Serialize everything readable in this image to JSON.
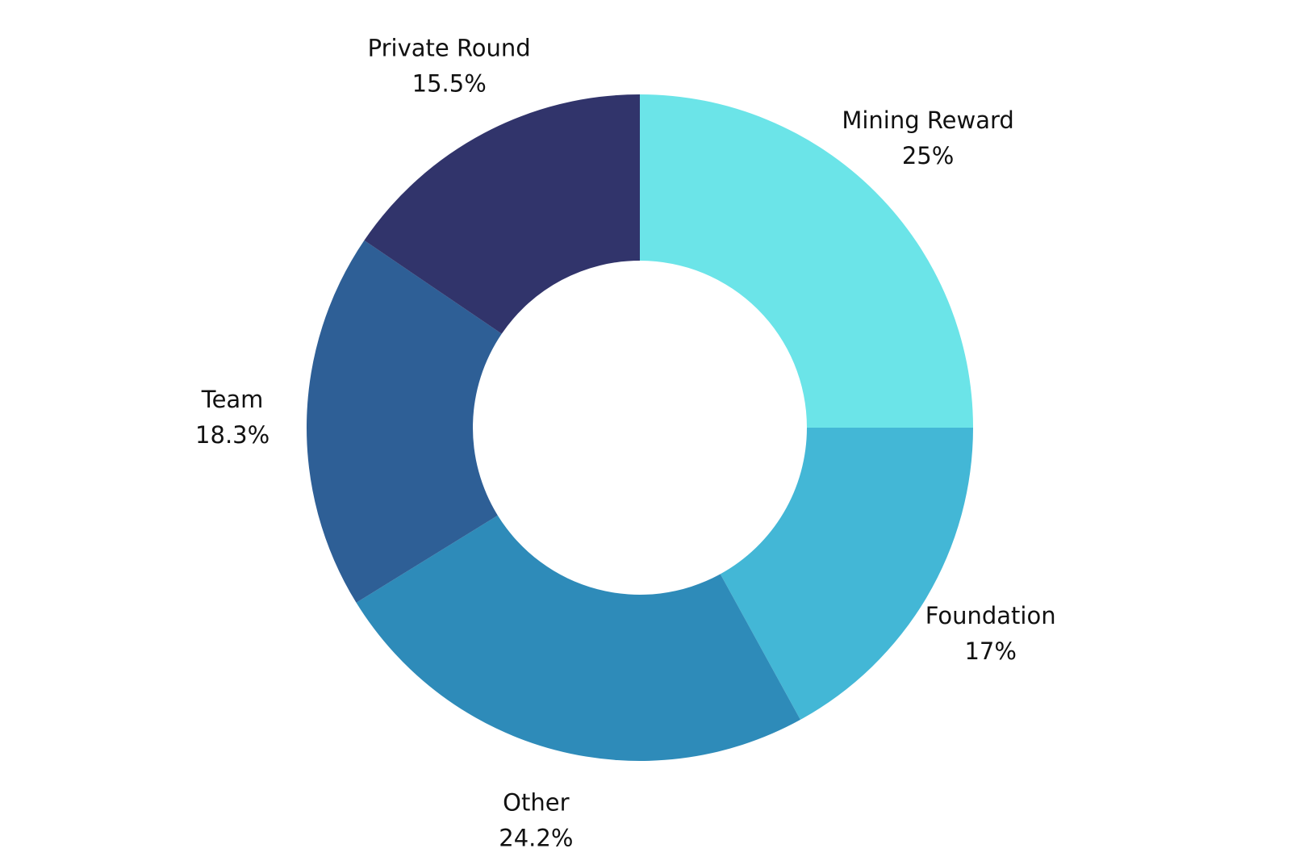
{
  "chart_data": {
    "type": "donut",
    "categories": [
      "Mining Reward",
      "Foundation",
      "Other",
      "Team",
      "Private Round"
    ],
    "values": [
      25,
      17,
      24.2,
      18.3,
      15.5
    ],
    "value_labels": [
      "25%",
      "17%",
      "24.2%",
      "18.3%",
      "15.5%"
    ],
    "colors": [
      "#6be4e8",
      "#43b7d6",
      "#2e8bb9",
      "#2e5f96",
      "#31346b"
    ]
  }
}
